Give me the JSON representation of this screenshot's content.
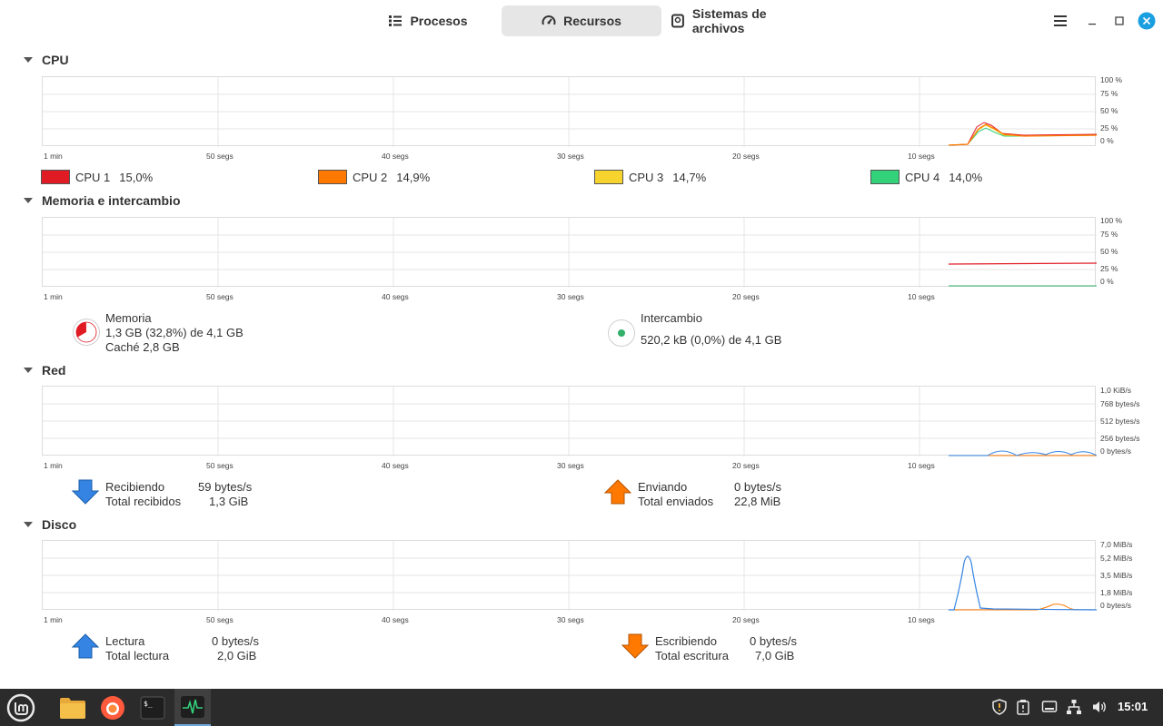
{
  "header": {
    "tabs": [
      {
        "label": "Procesos",
        "active": false
      },
      {
        "label": "Recursos",
        "active": true
      },
      {
        "label": "Sistemas de archivos",
        "active": false
      }
    ]
  },
  "axes": {
    "x_labels": [
      "1 min",
      "50 segs",
      "40 segs",
      "30 segs",
      "20 segs",
      "10 segs"
    ]
  },
  "cpu": {
    "title": "CPU",
    "y_labels": [
      "100 %",
      "75 %",
      "50 %",
      "25 %",
      "0 %"
    ],
    "legend": [
      {
        "label": "CPU 1",
        "value": "15,0%",
        "color": "#e01b24"
      },
      {
        "label": "CPU 2",
        "value": "14,9%",
        "color": "#ff7800"
      },
      {
        "label": "CPU 3",
        "value": "14,7%",
        "color": "#f6d32d"
      },
      {
        "label": "CPU 4",
        "value": "14,0%",
        "color": "#33d17a"
      }
    ]
  },
  "memory": {
    "title": "Memoria e intercambio",
    "y_labels": [
      "100 %",
      "75 %",
      "50 %",
      "25 %",
      "0 %"
    ],
    "mem_label": "Memoria",
    "mem_used": "1,3 GB (32,8%) de 4,1 GB",
    "mem_cache": "Caché 2,8 GB",
    "swap_label": "Intercambio",
    "swap_used": "520,2 kB (0,0%) de 4,1 GB",
    "mem_color": "#e01b24",
    "swap_color": "#33b06a"
  },
  "network": {
    "title": "Red",
    "y_labels": [
      "1,0 KiB/s",
      "768 bytes/s",
      "512 bytes/s",
      "256 bytes/s",
      "0 bytes/s"
    ],
    "recv_label": "Recibiendo",
    "recv_value": "59 bytes/s",
    "recv_total_label": "Total recibidos",
    "recv_total": "1,3 GiB",
    "send_label": "Enviando",
    "send_value": "0 bytes/s",
    "send_total_label": "Total enviados",
    "send_total": "22,8 MiB"
  },
  "disk": {
    "title": "Disco",
    "y_labels": [
      "7,0 MiB/s",
      "5,2 MiB/s",
      "3,5 MiB/s",
      "1,8 MiB/s",
      "0 bytes/s"
    ],
    "read_label": "Lectura",
    "read_value": "0 bytes/s",
    "read_total_label": "Total lectura",
    "read_total": "2,0 GiB",
    "write_label": "Escribiendo",
    "write_value": "0 bytes/s",
    "write_total_label": "Total escritura",
    "write_total": "7,0 GiB"
  },
  "taskbar": {
    "clock": "15:01"
  }
}
